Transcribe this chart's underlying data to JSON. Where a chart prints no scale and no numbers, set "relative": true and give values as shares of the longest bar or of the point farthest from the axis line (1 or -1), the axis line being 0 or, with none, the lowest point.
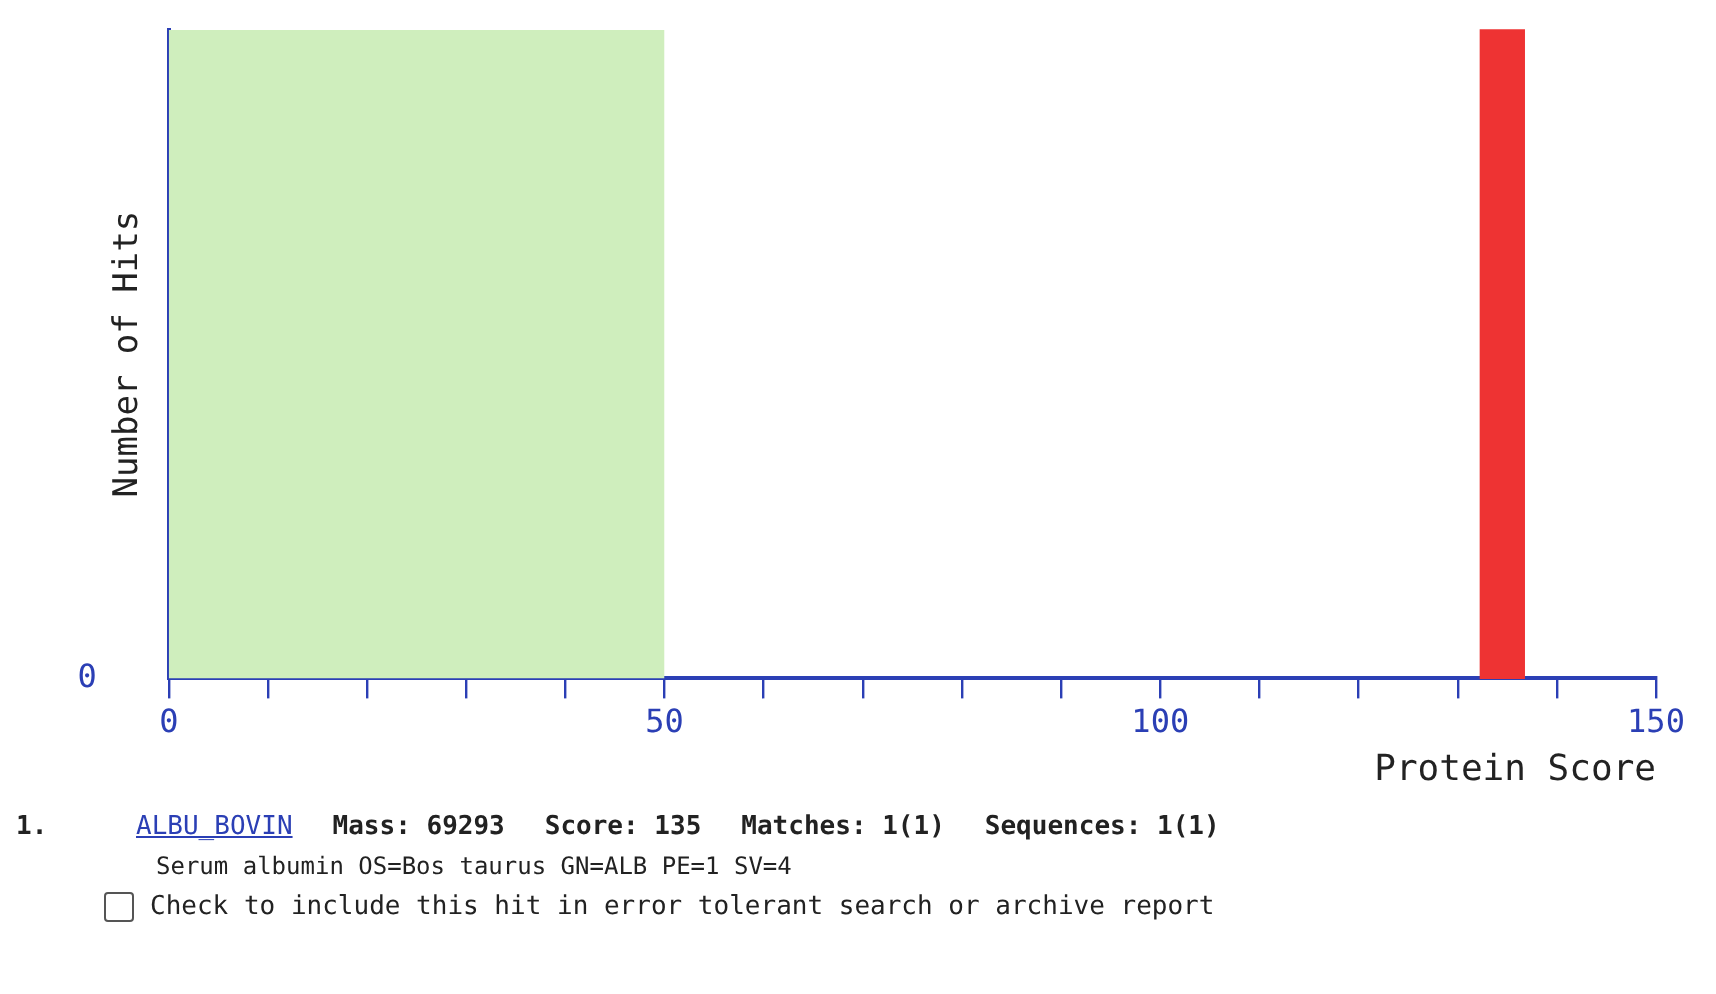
{
  "chart_data": {
    "type": "bar",
    "ylabel": "Number of Hits",
    "xlabel": "Protein Score",
    "x": [
      134.5
    ],
    "values": [
      1
    ],
    "color": "#ee3333",
    "relative": true,
    "xlim": [
      0,
      150
    ],
    "xticks": [
      0,
      {
        "value": 10,
        "label": null
      },
      {
        "value": 20,
        "label": null
      },
      {
        "value": 30,
        "label": null
      },
      {
        "value": 40,
        "label": null
      },
      50,
      {
        "value": 60,
        "label": null
      },
      {
        "value": 70,
        "label": null
      },
      {
        "value": 80,
        "label": null
      },
      {
        "value": 90,
        "label": null
      },
      100,
      {
        "value": 110,
        "label": null
      },
      {
        "value": 120,
        "label": null
      },
      {
        "value": 130,
        "label": null
      },
      {
        "value": 140,
        "label": null
      },
      150
    ],
    "bands": [
      {
        "axis": "x",
        "from": 0,
        "to": 50,
        "color": "#cfeebd"
      }
    ],
    "grid": false,
    "legend": false,
    "annotations": [
      "0",
      "1.",
      "ALBU_BOVIN",
      "Mass: 69293",
      "Score: 135",
      "Matches: 1(1)",
      "Sequences: 1(1)",
      "Serum albumin OS=Bos taurus GN=ALB PE=1 SV=4",
      "Check to include this hit in error tolerant search or archive report"
    ]
  }
}
